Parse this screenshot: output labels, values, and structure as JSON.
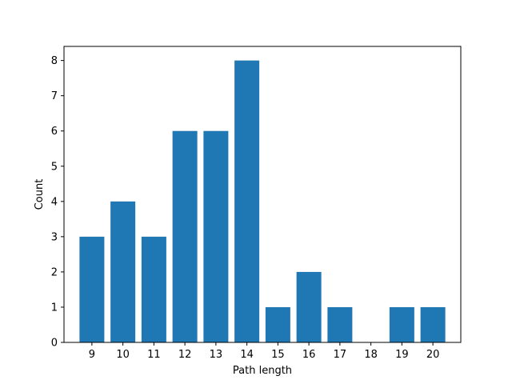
{
  "chart_data": {
    "type": "bar",
    "title": "",
    "xlabel": "Path length",
    "ylabel": "Count",
    "categories": [
      "9",
      "10",
      "11",
      "12",
      "13",
      "14",
      "15",
      "16",
      "17",
      "18",
      "19",
      "20"
    ],
    "values": [
      3,
      4,
      3,
      6,
      6,
      8,
      1,
      2,
      1,
      0,
      1,
      1
    ],
    "xlim": [
      8.1,
      20.9
    ],
    "ylim": [
      0,
      8.4
    ],
    "yticks": [
      0,
      1,
      2,
      3,
      4,
      5,
      6,
      7,
      8
    ],
    "bar_color": "#1f77b4",
    "grid": false,
    "legend": false
  }
}
